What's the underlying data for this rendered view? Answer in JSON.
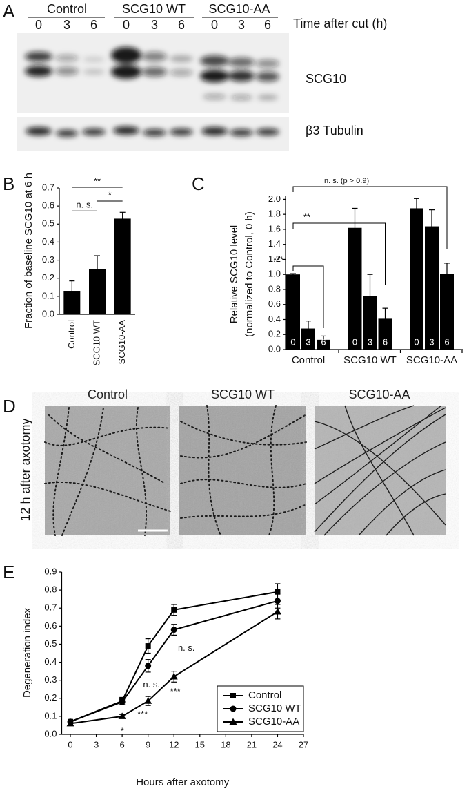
{
  "panel_labels": [
    "A",
    "B",
    "C",
    "D",
    "E"
  ],
  "blot": {
    "groups": [
      "Control",
      "SCG10 WT",
      "SCG10-AA"
    ],
    "lanes": [
      "0",
      "3",
      "6",
      "0",
      "3",
      "6",
      "0",
      "3",
      "6"
    ],
    "time_label": "Time after cut (h)",
    "rows": [
      "SCG10",
      "β3 Tubulin"
    ]
  },
  "micrographs": {
    "side_label": "12 h after axotomy",
    "titles": [
      "Control",
      "SCG10 WT",
      "SCG10-AA"
    ]
  },
  "chart_data": [
    {
      "type": "bar",
      "ylabel": "Fraction of baseline SCG10 at 6 h",
      "categories": [
        "Control",
        "SCG10 WT",
        "SCG10-AA"
      ],
      "values": [
        0.13,
        0.25,
        0.53
      ],
      "errors": [
        0.055,
        0.075,
        0.035
      ],
      "color": "#000000",
      "ylim": [
        0,
        0.7
      ],
      "yticks": [
        {
          "value": 0,
          "label": "0.0"
        },
        0.1,
        0.2,
        0.3,
        0.4,
        0.5,
        0.6,
        0.7
      ],
      "annotations": [
        "**",
        "*",
        "n. s."
      ]
    },
    {
      "type": "grouped_bar",
      "ylabel": [
        "Relative SCG10 level",
        "(normalized to Control, 0 h)"
      ],
      "categories": [
        "Control",
        "SCG10 WT",
        "SCG10-AA"
      ],
      "series": [
        {
          "name": "0",
          "color": "#000000",
          "values": [
            1.0,
            1.62,
            1.88
          ],
          "errors": [
            0.01,
            0.26,
            0.13
          ]
        },
        {
          "name": "3",
          "color": "#000000",
          "values": [
            0.28,
            0.71,
            1.64
          ],
          "errors": [
            0.1,
            0.29,
            0.22
          ]
        },
        {
          "name": "6",
          "color": "#000000",
          "values": [
            0.13,
            0.41,
            1.01
          ],
          "errors": [
            0.05,
            0.14,
            0.14
          ]
        }
      ],
      "ylim": [
        0,
        2.05
      ],
      "yticks": [
        {
          "value": 0,
          "label": "0.0"
        },
        0.2,
        0.4,
        0.6,
        0.8,
        {
          "value": 1,
          "label": "1.0"
        },
        1.2,
        1.4,
        1.6,
        1.8,
        {
          "value": 2,
          "label": "2.0"
        }
      ],
      "annotations": [
        "***",
        "**",
        "n. s. (p > 0.9)"
      ]
    },
    {
      "type": "line",
      "xlabel": "Hours after axotomy",
      "ylabel": "Degeneration index",
      "x": [
        0,
        6,
        9,
        12,
        24
      ],
      "series": [
        {
          "name": "Control",
          "color": "#000000",
          "marker": "square",
          "values": [
            0.07,
            0.185,
            0.49,
            0.69,
            0.79
          ],
          "errors": [
            0.01,
            0.02,
            0.04,
            0.03,
            0.045
          ]
        },
        {
          "name": "SCG10 WT",
          "color": "#000000",
          "marker": "circle",
          "values": [
            0.07,
            0.18,
            0.38,
            0.58,
            0.74
          ],
          "errors": [
            0.01,
            0.015,
            0.035,
            0.03,
            0.04
          ]
        },
        {
          "name": "SCG10-AA",
          "color": "#000000",
          "marker": "triangle",
          "values": [
            0.06,
            0.1,
            0.185,
            0.32,
            0.68
          ],
          "errors": [
            0.01,
            0.01,
            0.025,
            0.03,
            0.04
          ]
        }
      ],
      "xlim": [
        -1,
        27
      ],
      "xticks": [
        0,
        3,
        6,
        9,
        12,
        15,
        18,
        21,
        24,
        27
      ],
      "ylim": [
        0,
        0.9
      ],
      "yticks": [
        {
          "value": 0,
          "label": "0.0"
        },
        0.1,
        0.2,
        0.3,
        0.4,
        0.5,
        0.6,
        0.7,
        0.8,
        0.9
      ],
      "legend": "lower right",
      "annotations": [
        "*",
        "***",
        "***",
        "n. s.",
        "n. s."
      ]
    }
  ]
}
